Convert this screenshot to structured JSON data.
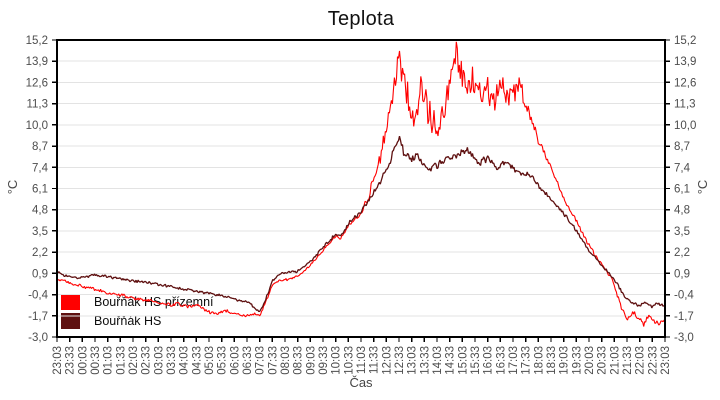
{
  "title": "Teplota",
  "chart_data": {
    "type": "line",
    "title": "Teplota",
    "xlabel": "Čas",
    "ylabel": "°C",
    "grid": true,
    "legend_position": "bottom-left-inside",
    "ylim": [
      -3.0,
      15.2
    ],
    "x_span": 24,
    "y_ticks": [
      {
        "label": "15,2",
        "value": 15.2
      },
      {
        "label": "13,9",
        "value": 13.9
      },
      {
        "label": "12,6",
        "value": 12.6
      },
      {
        "label": "11,3",
        "value": 11.3
      },
      {
        "label": "10,0",
        "value": 10.0
      },
      {
        "label": "8,7",
        "value": 8.7
      },
      {
        "label": "7,4",
        "value": 7.4
      },
      {
        "label": "6,1",
        "value": 6.1
      },
      {
        "label": "4,8",
        "value": 4.8
      },
      {
        "label": "3,5",
        "value": 3.5
      },
      {
        "label": "2,2",
        "value": 2.2
      },
      {
        "label": "0,9",
        "value": 0.9
      },
      {
        "label": "-0,4",
        "value": -0.4
      },
      {
        "label": "-1,7",
        "value": -1.7
      },
      {
        "label": "-3,0",
        "value": -3.0
      }
    ],
    "x_ticks": [
      "23:03",
      "23:33",
      "00:03",
      "00:33",
      "01:03",
      "01:33",
      "02:03",
      "02:33",
      "03:03",
      "03:33",
      "04:03",
      "04:33",
      "05:03",
      "05:33",
      "06:03",
      "06:33",
      "07:03",
      "07:33",
      "08:03",
      "08:33",
      "09:03",
      "09:33",
      "10:03",
      "10:33",
      "11:03",
      "11:33",
      "12:03",
      "12:33",
      "13:03",
      "13:33",
      "14:03",
      "14:33",
      "15:03",
      "15:33",
      "16:03",
      "16:33",
      "17:03",
      "17:33",
      "18:03",
      "18:33",
      "19:03",
      "19:33",
      "20:03",
      "20:33",
      "21:03",
      "21:33",
      "22:03",
      "22:33",
      "23:03"
    ],
    "series": [
      {
        "name": "Bouřňák HS přízemní",
        "color": "#ff0000",
        "width": 1.1,
        "seed": 97,
        "keypoints": [
          [
            0,
            0.55
          ],
          [
            0.5,
            0.3
          ],
          [
            1,
            0.1
          ],
          [
            1.5,
            -0.1
          ],
          [
            2,
            -0.3
          ],
          [
            2.5,
            -0.45
          ],
          [
            3,
            -0.6
          ],
          [
            3.5,
            -0.75
          ],
          [
            4,
            -0.9
          ],
          [
            4.5,
            -1.05
          ],
          [
            4.8,
            -0.95
          ],
          [
            5.1,
            -1.15
          ],
          [
            5.5,
            -1.05
          ],
          [
            6,
            -1.45
          ],
          [
            6.3,
            -1.65
          ],
          [
            6.6,
            -1.4
          ],
          [
            7,
            -1.5
          ],
          [
            7.4,
            -1.75
          ],
          [
            7.7,
            -1.55
          ],
          [
            8,
            -1.7
          ],
          [
            8.15,
            -1.2
          ],
          [
            8.5,
            0.2
          ],
          [
            8.8,
            0.45
          ],
          [
            9,
            0.5
          ],
          [
            9.5,
            0.7
          ],
          [
            10,
            1.4
          ],
          [
            10.5,
            2.3
          ],
          [
            11,
            3.2
          ],
          [
            11.2,
            3.0
          ],
          [
            11.5,
            3.8
          ],
          [
            12,
            4.6
          ],
          [
            12.3,
            5.6
          ],
          [
            12.6,
            7.2
          ],
          [
            12.9,
            9.0
          ],
          [
            13.1,
            10.5
          ],
          [
            13.3,
            12.2
          ],
          [
            13.5,
            14.4
          ],
          [
            13.7,
            12.8
          ],
          [
            13.9,
            11.2
          ],
          [
            14.05,
            9.9
          ],
          [
            14.2,
            11.0
          ],
          [
            14.4,
            12.2
          ],
          [
            14.6,
            11.2
          ],
          [
            14.8,
            10.3
          ],
          [
            15.1,
            9.6
          ],
          [
            15.4,
            12.2
          ],
          [
            15.6,
            13.5
          ],
          [
            15.8,
            14.2
          ],
          [
            16,
            13.2
          ],
          [
            16.2,
            12.3
          ],
          [
            16.5,
            12.8
          ],
          [
            16.8,
            11.7
          ],
          [
            17,
            12.2
          ],
          [
            17.3,
            11.4
          ],
          [
            17.5,
            12.4
          ],
          [
            17.8,
            11.8
          ],
          [
            18,
            12.1
          ],
          [
            18.3,
            12.4
          ],
          [
            18.5,
            11.4
          ],
          [
            18.7,
            10.4
          ],
          [
            19,
            9.1
          ],
          [
            19.3,
            8.0
          ],
          [
            19.6,
            6.9
          ],
          [
            20,
            5.5
          ],
          [
            20.4,
            4.4
          ],
          [
            20.8,
            3.2
          ],
          [
            21.2,
            2.1
          ],
          [
            21.6,
            1.25
          ],
          [
            21.9,
            0.6
          ],
          [
            22.1,
            -0.4
          ],
          [
            22.35,
            -1.5
          ],
          [
            22.55,
            -1.9
          ],
          [
            22.75,
            -1.5
          ],
          [
            22.95,
            -1.85
          ],
          [
            23.15,
            -2.25
          ],
          [
            23.35,
            -1.75
          ],
          [
            23.55,
            -1.95
          ],
          [
            23.75,
            -2.2
          ],
          [
            24,
            -1.95
          ]
        ],
        "noise": [
          [
            0,
            0.13
          ],
          [
            7,
            0.15
          ],
          [
            8.3,
            0.1
          ],
          [
            10,
            0.08
          ],
          [
            11,
            0.12
          ],
          [
            12,
            0.2
          ],
          [
            12.6,
            0.45
          ],
          [
            13,
            0.9
          ],
          [
            13.4,
            1.25
          ],
          [
            14,
            1.1
          ],
          [
            15,
            1.15
          ],
          [
            16,
            1.2
          ],
          [
            17,
            1.0
          ],
          [
            18,
            0.95
          ],
          [
            18.6,
            0.6
          ],
          [
            19.2,
            0.3
          ],
          [
            20,
            0.2
          ],
          [
            21,
            0.15
          ],
          [
            21.8,
            0.12
          ],
          [
            22.5,
            0.18
          ],
          [
            24,
            0.22
          ]
        ]
      },
      {
        "name": "Bouřňák HS",
        "color": "#5e1010",
        "width": 1.3,
        "seed": 31,
        "keypoints": [
          [
            0,
            1.0
          ],
          [
            0.3,
            0.8
          ],
          [
            0.7,
            0.65
          ],
          [
            1,
            0.65
          ],
          [
            1.5,
            0.8
          ],
          [
            2,
            0.7
          ],
          [
            2.5,
            0.55
          ],
          [
            3,
            0.45
          ],
          [
            3.5,
            0.35
          ],
          [
            4,
            0.2
          ],
          [
            4.5,
            0.1
          ],
          [
            5,
            -0.05
          ],
          [
            5.5,
            -0.2
          ],
          [
            6,
            -0.3
          ],
          [
            6.5,
            -0.45
          ],
          [
            7,
            -0.65
          ],
          [
            7.5,
            -0.85
          ],
          [
            7.8,
            -1.2
          ],
          [
            8,
            -1.45
          ],
          [
            8.15,
            -1.1
          ],
          [
            8.5,
            0.45
          ],
          [
            8.8,
            0.85
          ],
          [
            9,
            0.95
          ],
          [
            9.5,
            1.05
          ],
          [
            10,
            1.6
          ],
          [
            10.5,
            2.5
          ],
          [
            11,
            3.3
          ],
          [
            11.2,
            3.15
          ],
          [
            11.5,
            3.95
          ],
          [
            12,
            4.7
          ],
          [
            12.4,
            5.6
          ],
          [
            12.8,
            6.6
          ],
          [
            13,
            7.2
          ],
          [
            13.3,
            8.4
          ],
          [
            13.5,
            9.1
          ],
          [
            13.7,
            8.3
          ],
          [
            14,
            7.9
          ],
          [
            14.2,
            8.2
          ],
          [
            14.45,
            7.5
          ],
          [
            14.7,
            7.3
          ],
          [
            15,
            7.5
          ],
          [
            15.3,
            7.9
          ],
          [
            15.6,
            8.0
          ],
          [
            15.9,
            8.2
          ],
          [
            16.2,
            8.5
          ],
          [
            16.45,
            7.9
          ],
          [
            16.7,
            7.7
          ],
          [
            17,
            8.0
          ],
          [
            17.4,
            7.4
          ],
          [
            17.7,
            7.7
          ],
          [
            18,
            7.4
          ],
          [
            18.3,
            7.0
          ],
          [
            18.7,
            6.9
          ],
          [
            19,
            6.3
          ],
          [
            19.4,
            5.6
          ],
          [
            19.8,
            4.9
          ],
          [
            20.2,
            4.2
          ],
          [
            20.6,
            3.3
          ],
          [
            21,
            2.3
          ],
          [
            21.4,
            1.55
          ],
          [
            21.8,
            0.9
          ],
          [
            22.1,
            0.3
          ],
          [
            22.4,
            -0.5
          ],
          [
            22.7,
            -0.9
          ],
          [
            23,
            -1.05
          ],
          [
            23.2,
            -0.85
          ],
          [
            23.45,
            -1.15
          ],
          [
            23.7,
            -0.95
          ],
          [
            24,
            -1.15
          ]
        ],
        "noise": [
          [
            0,
            0.1
          ],
          [
            7,
            0.12
          ],
          [
            8.3,
            0.1
          ],
          [
            12,
            0.15
          ],
          [
            13,
            0.3
          ],
          [
            17,
            0.28
          ],
          [
            19,
            0.18
          ],
          [
            21,
            0.1
          ],
          [
            22.5,
            0.12
          ],
          [
            24,
            0.12
          ]
        ]
      }
    ]
  }
}
